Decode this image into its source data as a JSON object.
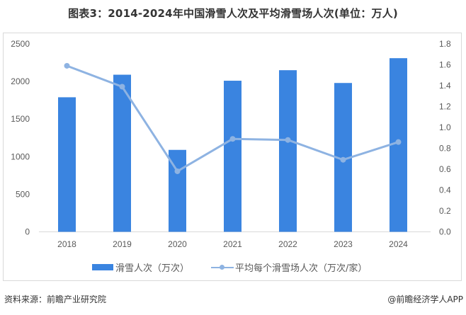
{
  "title": "图表3：2014-2024年中国滑雪人次及平均滑雪场人次(单位：万人)",
  "legend": {
    "bar_label": "滑雪人次（万次）",
    "line_label": "平均每个滑雪场人次（万次/家）"
  },
  "footer": {
    "source": "资料来源：前瞻产业研究院",
    "brand": "@前瞻经济学人APP"
  },
  "colors": {
    "bar": "#3a84e0",
    "line": "#8eb3e2",
    "axis_text": "#595959",
    "baseline": "#d9d9d9"
  },
  "chart_data": {
    "type": "bar+line",
    "title": "图表3：2014-2024年中国滑雪人次及平均滑雪场人次(单位：万人)",
    "categories": [
      "2018",
      "2019",
      "2020",
      "2021",
      "2022",
      "2023",
      "2024"
    ],
    "series": [
      {
        "name": "滑雪人次（万次）",
        "type": "bar",
        "axis": "left",
        "values": [
          1790,
          2090,
          1090,
          2010,
          2150,
          1980,
          2310
        ]
      },
      {
        "name": "平均每个滑雪场人次（万次/家）",
        "type": "line",
        "axis": "right",
        "values": [
          1.59,
          1.39,
          0.58,
          0.89,
          0.88,
          0.69,
          0.86
        ]
      }
    ],
    "left_axis": {
      "ylim": [
        0,
        2500
      ],
      "ticks": [
        "0",
        "500",
        "1000",
        "1500",
        "2000",
        "2500"
      ]
    },
    "right_axis": {
      "ylim": [
        0,
        1.8
      ],
      "ticks": [
        "0.0",
        "0.2",
        "0.4",
        "0.6",
        "0.8",
        "1.0",
        "1.2",
        "1.4",
        "1.6",
        "1.8"
      ]
    },
    "grid": false,
    "legend_position": "bottom"
  }
}
